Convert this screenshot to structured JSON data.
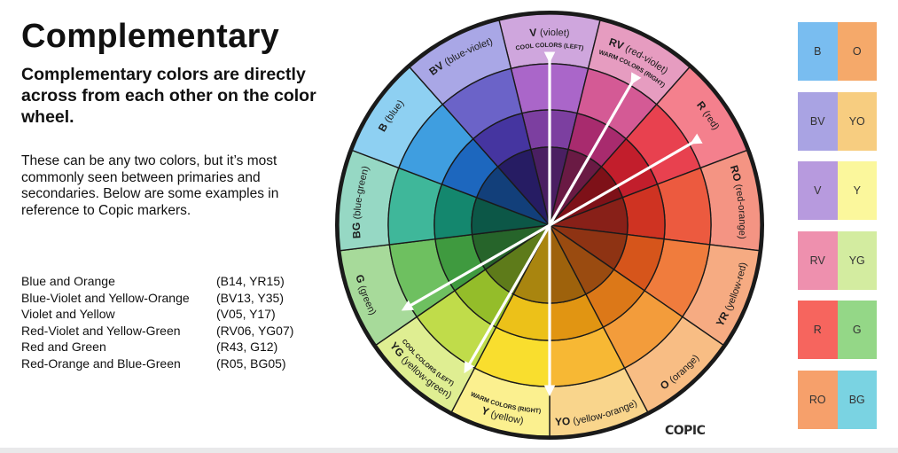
{
  "title": "Complementary",
  "subtitle": "Complementary colors are directly across from each other on the color wheel.",
  "body": "These can be any two colors, but it’s most commonly seen between primaries and secondaries. Below are some examples in reference to Copic markers.",
  "examples": [
    {
      "name": "Blue and Orange",
      "codes": "(B14, YR15)"
    },
    {
      "name": "Blue-Violet and Yellow-Orange",
      "codes": "(BV13, Y35)"
    },
    {
      "name": "Violet and Yellow",
      "codes": "(V05, Y17)"
    },
    {
      "name": "Red-Violet and Yellow-Green",
      "codes": "(RV06, YG07)"
    },
    {
      "name": "Red and Green",
      "codes": "(R43, G12)"
    },
    {
      "name": "Red-Orange and Blue-Green",
      "codes": "(R05, BG05)"
    }
  ],
  "wheel": {
    "segments": [
      {
        "code": "V",
        "name": "(violet)",
        "sub": "COOL COLORS (LEFT)",
        "colors": [
          "#cfa6dd",
          "#aa66c9",
          "#7c3fa0",
          "#4a1f62"
        ]
      },
      {
        "code": "RV",
        "name": "(red-violet)",
        "sub": "WARM COLORS (RIGHT)",
        "colors": [
          "#e69cc0",
          "#d45a95",
          "#a82b6e",
          "#6a1a44"
        ]
      },
      {
        "code": "R",
        "name": "(red)",
        "sub": "",
        "colors": [
          "#f4808d",
          "#e8414f",
          "#c21e2c",
          "#7e1118"
        ]
      },
      {
        "code": "RO",
        "name": "(red-orange)",
        "sub": "",
        "colors": [
          "#f49483",
          "#ec5a3f",
          "#cf3322",
          "#882018"
        ]
      },
      {
        "code": "YR",
        "name": "(yellow-red)",
        "sub": "",
        "colors": [
          "#f6ab82",
          "#f07c3d",
          "#d6551b",
          "#8e3313"
        ]
      },
      {
        "code": "O",
        "name": "(orange)",
        "sub": "",
        "colors": [
          "#f8bd84",
          "#f39c3b",
          "#dc7818",
          "#9a4b10"
        ]
      },
      {
        "code": "YO",
        "name": "(yellow-orange)",
        "sub": "",
        "colors": [
          "#f9d58c",
          "#f7b834",
          "#e19512",
          "#9e620c"
        ]
      },
      {
        "code": "Y",
        "name": "(yellow)",
        "sub": "WARM COLORS (RIGHT)",
        "colors": [
          "#fbf08f",
          "#f9de2e",
          "#ecc119",
          "#a9850f"
        ]
      },
      {
        "code": "YG",
        "name": "(yellow-green)",
        "sub": "COOL COLORS (LEFT)",
        "colors": [
          "#dfee92",
          "#c0dc4a",
          "#94bd2a",
          "#5e7b1a"
        ]
      },
      {
        "code": "G",
        "name": "(green)",
        "sub": "",
        "colors": [
          "#a7da9a",
          "#6ec060",
          "#3f9a3f",
          "#26642a"
        ]
      },
      {
        "code": "BG",
        "name": "(blue-green)",
        "sub": "",
        "colors": [
          "#96d8c4",
          "#3fb79a",
          "#14876e",
          "#0c5747"
        ]
      },
      {
        "code": "B",
        "name": "(blue)",
        "sub": "",
        "colors": [
          "#8ed0f2",
          "#3f9ee0",
          "#1d67be",
          "#123f7a"
        ]
      },
      {
        "code": "BV",
        "name": "(blue-violet)",
        "sub": "",
        "colors": [
          "#a9a7e6",
          "#6b63c8",
          "#4535a0",
          "#261c63"
        ]
      }
    ]
  },
  "swatches": [
    {
      "left": "B",
      "right": "O",
      "left_color": "#79bdf0",
      "right_color": "#f5a96a"
    },
    {
      "left": "BV",
      "right": "YO",
      "left_color": "#a9a3e3",
      "right_color": "#f7cd80"
    },
    {
      "left": "V",
      "right": "Y",
      "left_color": "#b79ade",
      "right_color": "#fbf79c"
    },
    {
      "left": "RV",
      "right": "YG",
      "left_color": "#ee90ae",
      "right_color": "#d3eca0"
    },
    {
      "left": "R",
      "right": "G",
      "left_color": "#f6655e",
      "right_color": "#94d787"
    },
    {
      "left": "RO",
      "right": "BG",
      "left_color": "#f6a06b",
      "right_color": "#7ad3e2"
    }
  ],
  "brand": "COPIC"
}
